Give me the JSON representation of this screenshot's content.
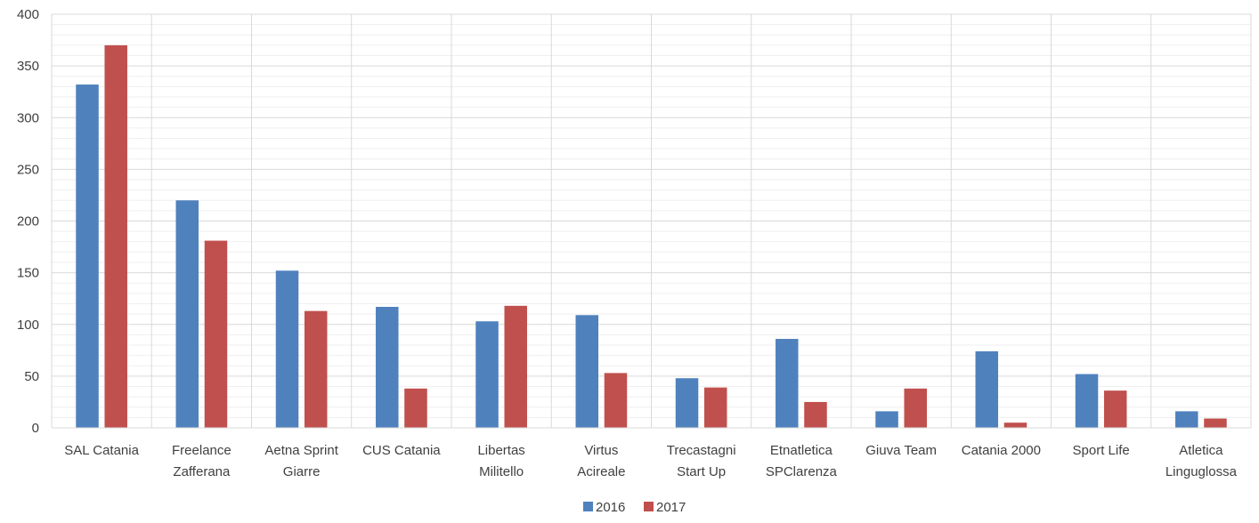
{
  "chart_data": {
    "type": "bar",
    "categories": [
      [
        "SAL Catania"
      ],
      [
        "Freelance",
        "Zafferana"
      ],
      [
        "Aetna Sprint",
        "Giarre"
      ],
      [
        "CUS Catania"
      ],
      [
        "Libertas",
        "Militello"
      ],
      [
        "Virtus",
        "Acireale"
      ],
      [
        "Trecastagni",
        "Start Up"
      ],
      [
        "Etnatletica",
        "SPClarenza"
      ],
      [
        "Giuva Team"
      ],
      [
        "Catania 2000"
      ],
      [
        "Sport Life"
      ],
      [
        "Atletica",
        "Linguglossa"
      ]
    ],
    "series": [
      {
        "name": "2016",
        "color": "#4f81bd",
        "values": [
          332,
          220,
          152,
          117,
          103,
          109,
          48,
          86,
          16,
          74,
          52,
          16
        ]
      },
      {
        "name": "2017",
        "color": "#c0504d",
        "values": [
          370,
          181,
          113,
          38,
          118,
          53,
          39,
          25,
          38,
          5,
          36,
          9
        ]
      }
    ],
    "y_ticks": [
      "0",
      "50",
      "100",
      "150",
      "200",
      "250",
      "300",
      "350",
      "400"
    ],
    "ylim": [
      0,
      400
    ],
    "grid": true,
    "legend_position": "bottom"
  }
}
